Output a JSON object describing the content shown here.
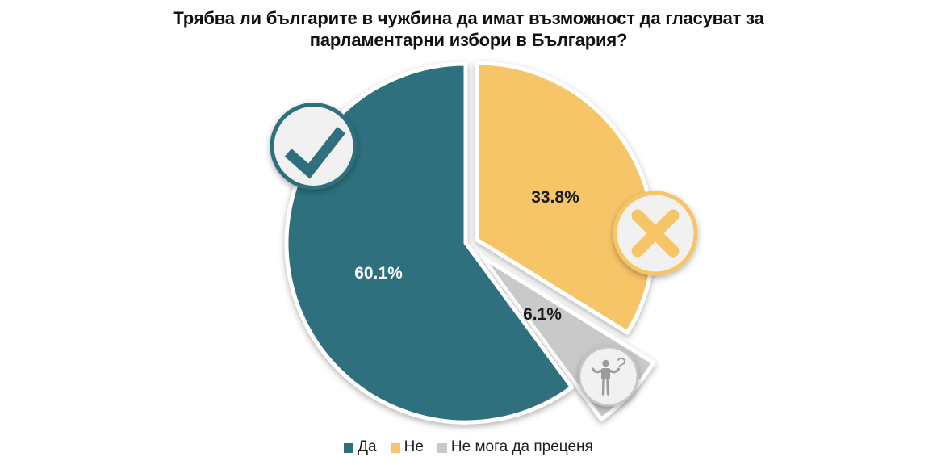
{
  "title": {
    "lines": [
      "Трябва ли българите в чужбина да имат възможност да гласуват за",
      "парламентарни избори в България?"
    ]
  },
  "chart_data": {
    "type": "pie",
    "title": "Трябва ли българите в чужбина да имат възможност да гласуват за парламентарни избори в България?",
    "unit": "%",
    "legend_position": "bottom",
    "start_angle_deg": 0,
    "slices": [
      {
        "label": "Да",
        "value": 60.1,
        "display": "60.1%",
        "color": "#2f6f7e",
        "label_color": "#ffffff",
        "icon": "check"
      },
      {
        "label": "Не",
        "value": 33.8,
        "display": "33.8%",
        "color": "#f6c567",
        "label_color": "#1a1a1a",
        "icon": "cross"
      },
      {
        "label": "Не мога да преценя",
        "value": 6.1,
        "display": "6.1%",
        "color": "#c9c9c9",
        "label_color": "#1a1a1a",
        "icon": "question-person"
      }
    ],
    "icons": {
      "circle_fill": "#f1f1f1",
      "check": {
        "border": "#2f6f7e",
        "glyph": "#2f6f7e"
      },
      "cross": {
        "border": "#f6c567",
        "glyph": "#f6c567"
      },
      "question-person": {
        "border": "#c6c6c6",
        "glyph": "#9c9c9c",
        "glyph_char": "?"
      }
    },
    "slice_border_color": "#ffffff"
  }
}
